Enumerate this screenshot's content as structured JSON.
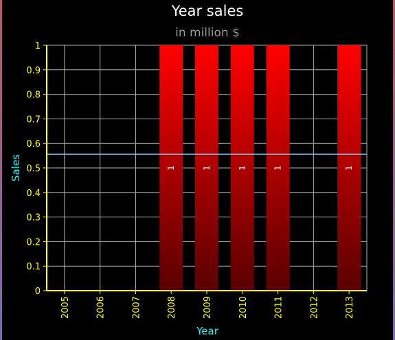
{
  "chart_data": {
    "type": "bar",
    "title": "Year sales",
    "subtitle": "in million $",
    "xlabel": "Year",
    "ylabel": "Sales",
    "categories": [
      "2005",
      "2006",
      "2007",
      "2008",
      "2009",
      "2010",
      "2011",
      "2012",
      "2013"
    ],
    "values": [
      0,
      0,
      0,
      1,
      1,
      1,
      1,
      0,
      1
    ],
    "data_labels": [
      "",
      "",
      "",
      "1",
      "1",
      "1",
      "1",
      "",
      "1"
    ],
    "ylim": [
      0,
      1
    ],
    "yticks": [
      "0",
      "0.1",
      "0.2",
      "0.3",
      "0.4",
      "0.5",
      "0.6",
      "0.7",
      "0.8",
      "0.9",
      "1"
    ],
    "average_line": 0.556,
    "grid": true,
    "legend": "none",
    "colors": {
      "background": "#000000",
      "bar_top": "#ff0000",
      "bar_bottom": "#5a0000",
      "grid": "#b0b0b0",
      "axis": "#ffff00",
      "tick_text": "#ffff00",
      "title": "#ffffff",
      "subtitle": "#999999",
      "axis_title": "#00ffff",
      "average_line": "#87cefa",
      "data_label": "#e6e6e6"
    }
  }
}
